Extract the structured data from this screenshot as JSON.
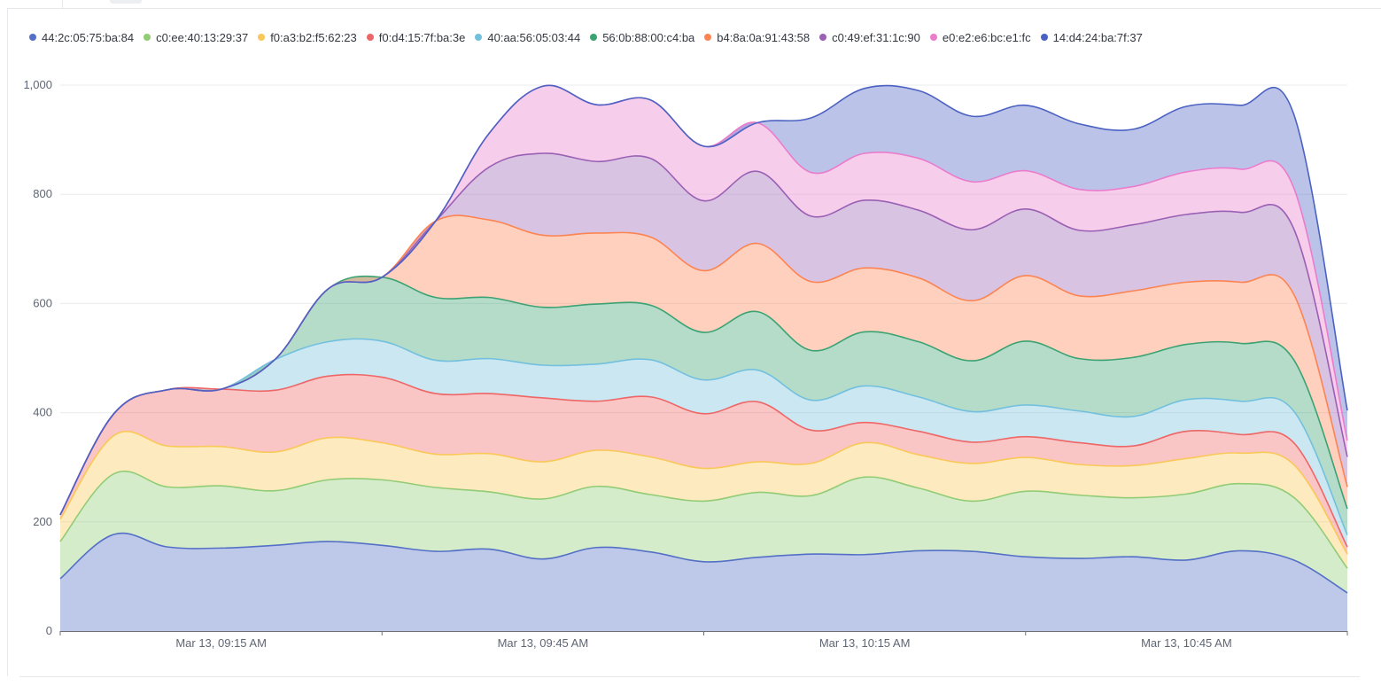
{
  "chart_data": {
    "type": "area",
    "stacked": true,
    "title": "",
    "xlabel": "",
    "ylabel": "",
    "ylim": [
      0,
      1000
    ],
    "yticks": [
      "0",
      "200",
      "400",
      "600",
      "800",
      "1,000"
    ],
    "ytick_values": [
      0,
      200,
      400,
      600,
      800,
      1000
    ],
    "xtick_labels": [
      "Mar 13, 09:15 AM",
      "Mar 13, 09:45 AM",
      "Mar 13, 10:15 AM",
      "Mar 13, 10:45 AM"
    ],
    "xtick_times": [
      "09:15",
      "09:45",
      "10:15",
      "10:45"
    ],
    "x": [
      "09:00",
      "09:05",
      "09:10",
      "09:15",
      "09:20",
      "09:25",
      "09:30",
      "09:35",
      "09:40",
      "09:45",
      "09:50",
      "09:55",
      "10:00",
      "10:05",
      "10:10",
      "10:15",
      "10:20",
      "10:25",
      "10:30",
      "10:35",
      "10:40",
      "10:45",
      "10:50",
      "10:55",
      "11:00"
    ],
    "grid": true,
    "legend_position": "top-left",
    "series": [
      {
        "name": "44:2c:05:75:ba:84",
        "color": "#5470c6",
        "values": [
          96,
          177,
          154,
          152,
          157,
          164,
          157,
          146,
          150,
          132,
          153,
          145,
          127,
          135,
          141,
          140,
          147,
          146,
          136,
          133,
          136,
          130,
          147,
          130,
          70
        ]
      },
      {
        "name": "c0:ee:40:13:29:37",
        "color": "#91cc75",
        "values": [
          68,
          111,
          110,
          114,
          100,
          113,
          120,
          117,
          105,
          110,
          112,
          105,
          111,
          119,
          107,
          142,
          115,
          92,
          120,
          116,
          108,
          121,
          123,
          115,
          45
        ]
      },
      {
        "name": "f0:a3:b2:f5:62:23",
        "color": "#fac858",
        "values": [
          41,
          70,
          75,
          72,
          71,
          77,
          68,
          61,
          70,
          68,
          66,
          69,
          60,
          56,
          59,
          63,
          61,
          69,
          62,
          56,
          59,
          65,
          56,
          60,
          26
        ]
      },
      {
        "name": "f0:d4:15:7f:ba:3e",
        "color": "#ee6666",
        "values": [
          8,
          40,
          103,
          105,
          113,
          113,
          120,
          111,
          110,
          117,
          90,
          110,
          100,
          110,
          61,
          37,
          43,
          39,
          38,
          40,
          36,
          50,
          34,
          40,
          13
        ]
      },
      {
        "name": "40:aa:56:05:03:44",
        "color": "#73c0de",
        "values": [
          0,
          0,
          0,
          0,
          56,
          63,
          66,
          61,
          64,
          60,
          68,
          68,
          62,
          58,
          55,
          67,
          63,
          56,
          58,
          58,
          54,
          58,
          61,
          58,
          22
        ]
      },
      {
        "name": "56:0b:88:00:c4:ba",
        "color": "#3ba272",
        "values": [
          0,
          0,
          0,
          0,
          0,
          97,
          117,
          115,
          112,
          106,
          110,
          100,
          87,
          107,
          91,
          99,
          101,
          93,
          117,
          96,
          108,
          101,
          106,
          94,
          48
        ]
      },
      {
        "name": "b4:8a:0a:91:43:58",
        "color": "#fc8452",
        "values": [
          0,
          0,
          0,
          0,
          0,
          0,
          0,
          140,
          142,
          132,
          130,
          125,
          113,
          125,
          126,
          117,
          117,
          110,
          120,
          115,
          122,
          114,
          112,
          120,
          40
        ]
      },
      {
        "name": "c0:49:ef:31:1c:90",
        "color": "#9a60b4",
        "values": [
          0,
          0,
          0,
          0,
          0,
          0,
          0,
          0,
          97,
          150,
          131,
          144,
          128,
          132,
          120,
          124,
          124,
          130,
          122,
          120,
          121,
          124,
          128,
          120,
          55
        ]
      },
      {
        "name": "e0:e2:e6:bc:e1:fc",
        "color": "#ea7ccc",
        "values": [
          0,
          0,
          0,
          0,
          0,
          0,
          0,
          0,
          62,
          123,
          104,
          107,
          100,
          89,
          80,
          86,
          95,
          88,
          70,
          75,
          70,
          78,
          79,
          75,
          30
        ]
      },
      {
        "name": "14:d4:24:ba:7f:37",
        "color": "#4b62c3",
        "values": [
          0,
          0,
          0,
          0,
          0,
          0,
          0,
          0,
          0,
          0,
          0,
          0,
          0,
          0,
          100,
          119,
          124,
          120,
          120,
          120,
          105,
          120,
          117,
          135,
          55
        ]
      }
    ]
  }
}
